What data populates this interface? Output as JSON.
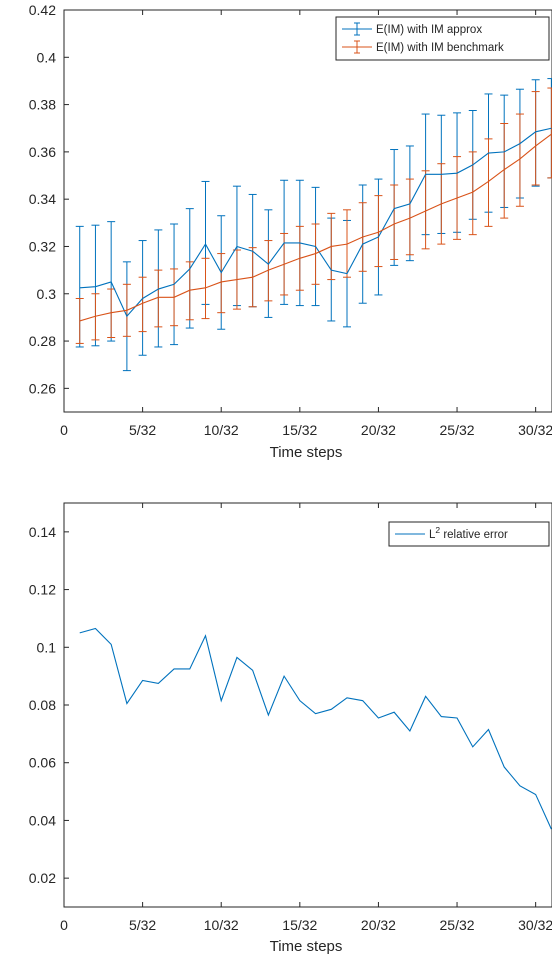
{
  "chart_data": [
    {
      "type": "line",
      "title": "",
      "xlabel": "Time steps",
      "ylabel": "",
      "xlim": [
        0,
        0.97
      ],
      "ylim": [
        0.25,
        0.42
      ],
      "xticks": [
        0,
        0.15625,
        0.3125,
        0.46875,
        0.625,
        0.78125,
        0.9375
      ],
      "xtick_labels": [
        "0",
        "5/32",
        "10/32",
        "15/32",
        "20/32",
        "25/32",
        "30/32"
      ],
      "yticks": [
        0.26,
        0.28,
        0.3,
        0.32,
        0.34,
        0.36,
        0.38,
        0.4,
        0.42
      ],
      "ytick_labels": [
        "0.26",
        "0.28",
        "0.3",
        "0.32",
        "0.34",
        "0.36",
        "0.38",
        "0.4",
        "0.42"
      ],
      "grid": false,
      "legend_position": "top-right",
      "x": [
        0.03125,
        0.0625,
        0.09375,
        0.125,
        0.15625,
        0.1875,
        0.21875,
        0.25,
        0.28125,
        0.3125,
        0.34375,
        0.375,
        0.40625,
        0.4375,
        0.46875,
        0.5,
        0.53125,
        0.5625,
        0.59375,
        0.625,
        0.65625,
        0.6875,
        0.71875,
        0.75,
        0.78125,
        0.8125,
        0.84375,
        0.875,
        0.90625,
        0.9375,
        0.96875
      ],
      "series": [
        {
          "name": "E(IM) with IM approx",
          "color": "#0072bd",
          "values": [
            0.3025,
            0.303,
            0.305,
            0.2905,
            0.298,
            0.302,
            0.304,
            0.3105,
            0.321,
            0.309,
            0.32,
            0.318,
            0.3125,
            0.3215,
            0.3215,
            0.32,
            0.31,
            0.3085,
            0.321,
            0.324,
            0.336,
            0.338,
            0.3505,
            0.3505,
            0.351,
            0.3545,
            0.3595,
            0.36,
            0.3635,
            0.3685,
            0.37
          ],
          "err_low": [
            0.2775,
            0.278,
            0.28,
            0.2675,
            0.274,
            0.2775,
            0.2785,
            0.2855,
            0.2955,
            0.285,
            0.295,
            0.2945,
            0.29,
            0.2955,
            0.295,
            0.295,
            0.2885,
            0.286,
            0.296,
            0.2995,
            0.312,
            0.314,
            0.325,
            0.3255,
            0.326,
            0.3315,
            0.3345,
            0.3365,
            0.3405,
            0.3455,
            0.349
          ],
          "err_high": [
            0.3285,
            0.329,
            0.3305,
            0.3135,
            0.3225,
            0.327,
            0.3295,
            0.336,
            0.3475,
            0.333,
            0.3455,
            0.342,
            0.3355,
            0.348,
            0.348,
            0.345,
            0.332,
            0.331,
            0.346,
            0.3485,
            0.361,
            0.3625,
            0.376,
            0.3755,
            0.3765,
            0.3775,
            0.3845,
            0.384,
            0.3865,
            0.3905,
            0.391
          ]
        },
        {
          "name": "E(IM) with IM benchmark",
          "color": "#d95319",
          "values": [
            0.2885,
            0.2905,
            0.292,
            0.293,
            0.296,
            0.2985,
            0.2985,
            0.3015,
            0.3025,
            0.305,
            0.306,
            0.307,
            0.31,
            0.3125,
            0.315,
            0.317,
            0.32,
            0.321,
            0.324,
            0.326,
            0.3295,
            0.332,
            0.335,
            0.338,
            0.3405,
            0.343,
            0.3475,
            0.3525,
            0.357,
            0.3625,
            0.3675
          ],
          "err_low": [
            0.279,
            0.2805,
            0.2815,
            0.282,
            0.284,
            0.286,
            0.2865,
            0.289,
            0.2895,
            0.292,
            0.2935,
            0.2945,
            0.297,
            0.2995,
            0.3015,
            0.304,
            0.306,
            0.307,
            0.3095,
            0.3115,
            0.3145,
            0.3165,
            0.319,
            0.321,
            0.323,
            0.325,
            0.3285,
            0.332,
            0.337,
            0.346,
            0.349
          ],
          "err_high": [
            0.298,
            0.3,
            0.302,
            0.304,
            0.307,
            0.31,
            0.3105,
            0.3135,
            0.315,
            0.317,
            0.3185,
            0.3195,
            0.3225,
            0.3255,
            0.3285,
            0.3295,
            0.334,
            0.3355,
            0.3385,
            0.3415,
            0.346,
            0.3485,
            0.352,
            0.355,
            0.358,
            0.36,
            0.3655,
            0.372,
            0.376,
            0.3855,
            0.387
          ]
        }
      ]
    },
    {
      "type": "line",
      "title": "",
      "xlabel": "Time steps",
      "ylabel": "",
      "xlim": [
        0,
        0.97
      ],
      "ylim": [
        0.01,
        0.15
      ],
      "xticks": [
        0,
        0.15625,
        0.3125,
        0.46875,
        0.625,
        0.78125,
        0.9375
      ],
      "xtick_labels": [
        "0",
        "5/32",
        "10/32",
        "15/32",
        "20/32",
        "25/32",
        "30/32"
      ],
      "yticks": [
        0.02,
        0.04,
        0.06,
        0.08,
        0.1,
        0.12,
        0.14
      ],
      "ytick_labels": [
        "0.02",
        "0.04",
        "0.06",
        "0.08",
        "0.1",
        "0.12",
        "0.14"
      ],
      "grid": false,
      "legend_position": "top-right",
      "x": [
        0.03125,
        0.0625,
        0.09375,
        0.125,
        0.15625,
        0.1875,
        0.21875,
        0.25,
        0.28125,
        0.3125,
        0.34375,
        0.375,
        0.40625,
        0.4375,
        0.46875,
        0.5,
        0.53125,
        0.5625,
        0.59375,
        0.625,
        0.65625,
        0.6875,
        0.71875,
        0.75,
        0.78125,
        0.8125,
        0.84375,
        0.875,
        0.90625,
        0.9375,
        0.96875
      ],
      "series": [
        {
          "name_base": "L",
          "name_sup": "2",
          "name_rest": " relative error",
          "color": "#0072bd",
          "values": [
            0.105,
            0.1065,
            0.101,
            0.0805,
            0.0885,
            0.0875,
            0.0925,
            0.0925,
            0.104,
            0.0815,
            0.0965,
            0.092,
            0.0765,
            0.09,
            0.0815,
            0.077,
            0.0785,
            0.0825,
            0.0815,
            0.0755,
            0.0775,
            0.071,
            0.083,
            0.076,
            0.0755,
            0.0655,
            0.0715,
            0.0585,
            0.052,
            0.049,
            0.037
          ]
        }
      ]
    }
  ]
}
